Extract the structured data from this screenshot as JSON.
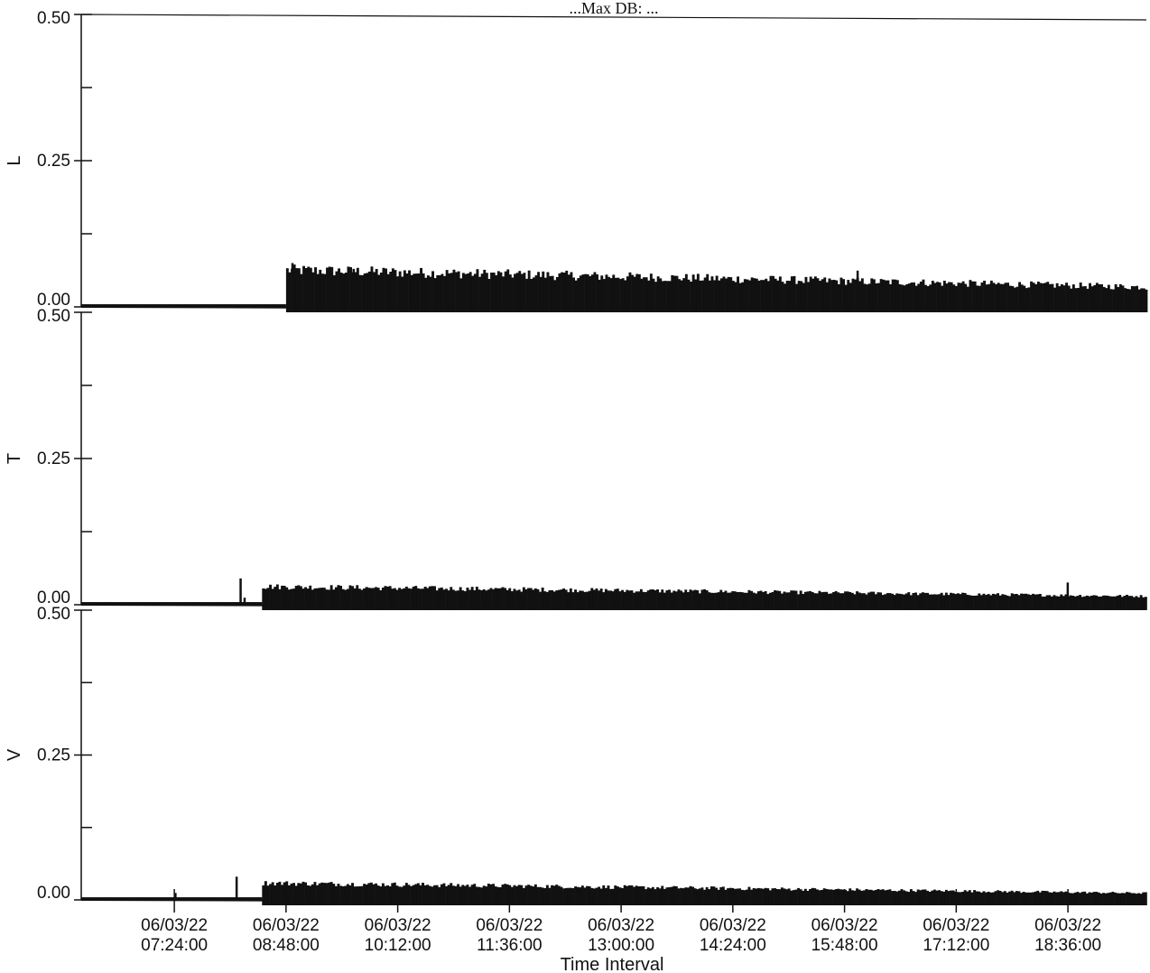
{
  "title": "...Max DB: ...",
  "colors": {
    "ink": "#111111",
    "background": "#ffffff"
  },
  "chart_data": {
    "type": "bar",
    "xlabel": "Time Interval",
    "x_ticks": [
      {
        "date": "06/03/22",
        "time": "07:24:00"
      },
      {
        "date": "06/03/22",
        "time": "08:48:00"
      },
      {
        "date": "06/03/22",
        "time": "10:12:00"
      },
      {
        "date": "06/03/22",
        "time": "11:36:00"
      },
      {
        "date": "06/03/22",
        "time": "13:00:00"
      },
      {
        "date": "06/03/22",
        "time": "14:24:00"
      },
      {
        "date": "06/03/22",
        "time": "15:48:00"
      },
      {
        "date": "06/03/22",
        "time": "17:12:00"
      },
      {
        "date": "06/03/22",
        "time": "18:36:00"
      }
    ],
    "x_range": [
      "06/03/22 06:14:00",
      "06/03/22 19:35:00"
    ],
    "panels": [
      {
        "name": "L",
        "ylabel": "L",
        "ylim": [
          0,
          0.5
        ],
        "y_tick_labels": [
          "0.00",
          "0.25",
          "0.50"
        ],
        "segments": [
          {
            "start": "06/03/22 06:14:00",
            "end": "08:48:00",
            "level": 0.003,
            "spikes": []
          },
          {
            "start": "06/03/22 08:48:00",
            "end": "06/03/22 19:35:00",
            "level_start": 0.065,
            "level_end": 0.035,
            "spikes": [
              {
                "t": "08:52:00",
                "v": 0.075
              },
              {
                "t": "09:38:00",
                "v": 0.065
              },
              {
                "t": "15:57:00",
                "v": 0.062
              }
            ]
          }
        ]
      },
      {
        "name": "T",
        "ylabel": "T",
        "ylim": [
          0,
          0.5
        ],
        "y_tick_labels": [
          "0.00",
          "0.25",
          "0.50"
        ],
        "segments": [
          {
            "start": "06/03/22 06:14:00",
            "end": "06/03/22 08:30:00",
            "level": 0.003,
            "spikes": [
              {
                "t": "08:13:00",
                "v": 0.045
              },
              {
                "t": "08:16:00",
                "v": 0.012
              }
            ]
          },
          {
            "start": "06/03/22 08:30:00",
            "end": "06/03/22 19:35:00",
            "level_start": 0.032,
            "level_end": 0.015,
            "spikes": [
              {
                "t": "18:35:00",
                "v": 0.038
              }
            ]
          }
        ]
      },
      {
        "name": "V",
        "ylabel": "V",
        "ylim": [
          0,
          0.5
        ],
        "y_tick_labels": [
          "0.00",
          "0.25",
          "0.50"
        ],
        "segments": [
          {
            "start": "06/03/22 06:14:00",
            "end": "06/03/22 08:30:00",
            "level": 0.003,
            "spikes": [
              {
                "t": "07:24:00",
                "v": 0.012
              },
              {
                "t": "08:10:00",
                "v": 0.04
              }
            ]
          },
          {
            "start": "06/03/22 08:30:00",
            "end": "06/03/22 19:35:00",
            "level_start": 0.03,
            "level_end": 0.012,
            "spikes": []
          }
        ]
      }
    ]
  }
}
